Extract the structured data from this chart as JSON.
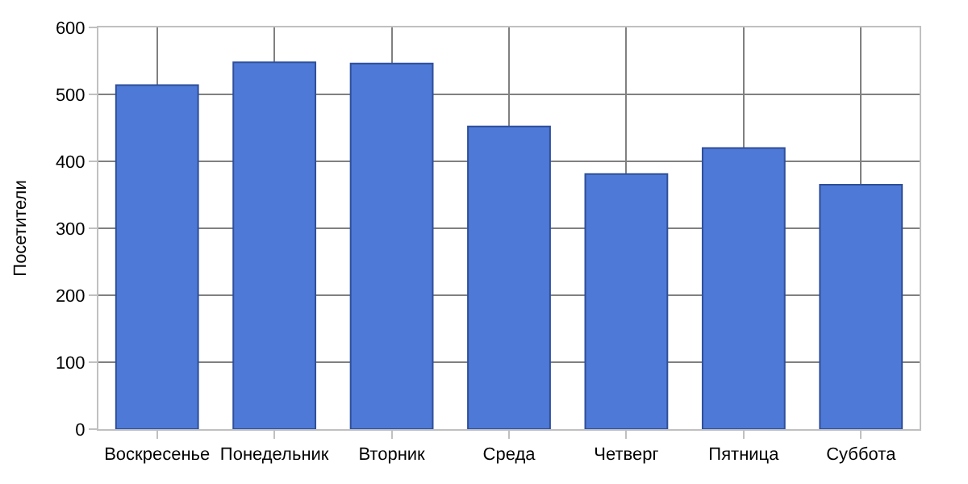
{
  "chart_data": {
    "type": "bar",
    "ylabel": "Посетители",
    "categories": [
      "Воскресенье",
      "Понедельник",
      "Вторник",
      "Среда",
      "Четверг",
      "Пятница",
      "Суббота"
    ],
    "values": [
      514,
      548,
      546,
      452,
      381,
      420,
      365
    ],
    "color": "#4f79d6",
    "ylim": [
      0,
      600
    ],
    "yticks": [
      0,
      100,
      200,
      300,
      400,
      500,
      600
    ],
    "grid": true
  }
}
